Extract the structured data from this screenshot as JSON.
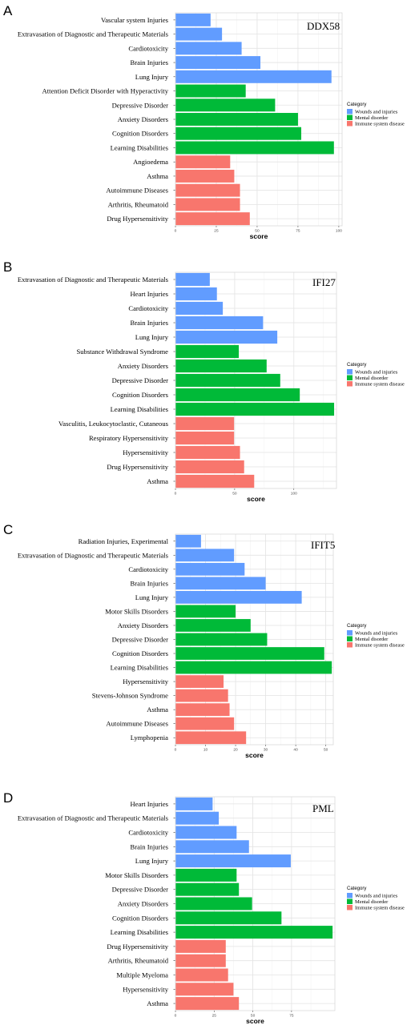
{
  "colors": {
    "Wounds and injuries": "#619CFF",
    "Mental disorder": "#00BA38",
    "Immune system disease": "#F8766D"
  },
  "chart_data": [
    {
      "panel": "A",
      "type": "bar",
      "orientation": "horizontal",
      "gene": "DDX58",
      "xlabel": "score",
      "xlim": [
        0,
        102
      ],
      "xticks": [
        0,
        25,
        50,
        75,
        100
      ],
      "categories": [
        "Vascular system Injuries",
        "Extravasation of Diagnostic and Therapeutic Materials",
        "Cardiotoxicity",
        "Brain Injuries",
        "Lung Injury",
        "Attention Deficit Disorder with Hyperactivity",
        "Depressive Disorder",
        "Anxiety Disorders",
        "Cognition Disorders",
        "Learning Disabilities",
        "Angioedema",
        "Asthma",
        "Autoimmune Diseases",
        "Arthritis, Rheumatoid",
        "Drug Hypersensitivity"
      ],
      "values": [
        21.5,
        28.5,
        40.5,
        52,
        95.5,
        43,
        61,
        75,
        77,
        97,
        33.5,
        36,
        39.5,
        39.5,
        45.5
      ],
      "groups": [
        "Wounds and injuries",
        "Wounds and injuries",
        "Wounds and injuries",
        "Wounds and injuries",
        "Wounds and injuries",
        "Mental disorder",
        "Mental disorder",
        "Mental disorder",
        "Mental disorder",
        "Mental disorder",
        "Immune system disease",
        "Immune system disease",
        "Immune system disease",
        "Immune system disease",
        "Immune system disease"
      ],
      "legend": {
        "title": "Category",
        "entries": [
          "Wounds and injuries",
          "Mental disorder",
          "Immune system disease"
        ],
        "position": "right"
      }
    },
    {
      "panel": "B",
      "type": "bar",
      "orientation": "horizontal",
      "gene": "IFI27",
      "xlabel": "score",
      "xlim": [
        0,
        136
      ],
      "xticks": [
        0,
        50,
        100
      ],
      "categories": [
        "Extravasation of Diagnostic and Therapeutic Materials",
        "Heart Injuries",
        "Cardiotoxicity",
        "Brain Injuries",
        "Lung Injury",
        "Substance Withdrawal Syndrome",
        "Anxiety Disorders",
        "Depressive Disorder",
        "Cognition Disorders",
        "Learning Disabilities",
        "Vasculitis, Leukocytoclastic, Cutaneous",
        "Respiratory Hypersensitivity",
        "Hypersensitivity",
        "Drug Hypersensitivity",
        "Asthma"
      ],
      "values": [
        29,
        35,
        40,
        74,
        86,
        53.5,
        77,
        88.5,
        105,
        134,
        49.5,
        49.5,
        54.5,
        58,
        66.5
      ],
      "groups": [
        "Wounds and injuries",
        "Wounds and injuries",
        "Wounds and injuries",
        "Wounds and injuries",
        "Wounds and injuries",
        "Mental disorder",
        "Mental disorder",
        "Mental disorder",
        "Mental disorder",
        "Mental disorder",
        "Immune system disease",
        "Immune system disease",
        "Immune system disease",
        "Immune system disease",
        "Immune system disease"
      ],
      "legend": {
        "title": "Category",
        "entries": [
          "Wounds and injuries",
          "Mental disorder",
          "Immune system disease"
        ],
        "position": "right"
      }
    },
    {
      "panel": "C",
      "type": "bar",
      "orientation": "horizontal",
      "gene": "IFIT5",
      "xlabel": "score",
      "xlim": [
        0,
        52.5
      ],
      "xticks": [
        0,
        10,
        20,
        30,
        40,
        50
      ],
      "categories": [
        "Radiation Injuries, Experimental",
        "Extravasation of Diagnostic and Therapeutic Materials",
        "Cardiotoxicity",
        "Brain Injuries",
        "Lung Injury",
        "Motor Skills Disorders",
        "Anxiety Disorders",
        "Depressive Disorder",
        "Cognition Disorders",
        "Learning Disabilities",
        "Hypersensitivity",
        "Stevens-Johnson Syndrome",
        "Asthma",
        "Autoimmune Diseases",
        "Lymphopenia"
      ],
      "values": [
        8.5,
        19.5,
        23,
        30,
        42,
        20,
        25,
        30.5,
        49.5,
        52,
        16,
        17.5,
        18,
        19.5,
        23.5
      ],
      "groups": [
        "Wounds and injuries",
        "Wounds and injuries",
        "Wounds and injuries",
        "Wounds and injuries",
        "Wounds and injuries",
        "Mental disorder",
        "Mental disorder",
        "Mental disorder",
        "Mental disorder",
        "Mental disorder",
        "Immune system disease",
        "Immune system disease",
        "Immune system disease",
        "Immune system disease",
        "Immune system disease"
      ],
      "legend": {
        "title": "Category",
        "entries": [
          "Wounds and injuries",
          "Mental disorder",
          "Immune system disease"
        ],
        "position": "right"
      }
    },
    {
      "panel": "D",
      "type": "bar",
      "orientation": "horizontal",
      "gene": "PML",
      "xlabel": "score",
      "xlim": [
        0,
        103
      ],
      "xticks": [
        0,
        25,
        50,
        75
      ],
      "categories": [
        "Heart Injuries",
        "Extravasation of Diagnostic and Therapeutic Materials",
        "Cardiotoxicity",
        "Brain Injuries",
        "Lung Injury",
        "Motor Skills Disorders",
        "Depressive Disorder",
        "Anxiety Disorders",
        "Cognition Disorders",
        "Learning Disabilities",
        "Drug Hypersensitivity",
        "Arthritis, Rheumatoid",
        "Multiple Myeloma",
        "Hypersensitivity",
        "Asthma"
      ],
      "values": [
        24,
        28,
        39.5,
        47.5,
        74.5,
        39.5,
        41,
        49.5,
        68.5,
        101.5,
        32.5,
        32.5,
        34,
        37.5,
        41
      ],
      "groups": [
        "Wounds and injuries",
        "Wounds and injuries",
        "Wounds and injuries",
        "Wounds and injuries",
        "Wounds and injuries",
        "Mental disorder",
        "Mental disorder",
        "Mental disorder",
        "Mental disorder",
        "Mental disorder",
        "Immune system disease",
        "Immune system disease",
        "Immune system disease",
        "Immune system disease",
        "Immune system disease"
      ],
      "legend": {
        "title": "Category",
        "entries": [
          "Wounds and injuries",
          "Mental disorder",
          "Immune system disease"
        ],
        "position": "right"
      }
    }
  ]
}
